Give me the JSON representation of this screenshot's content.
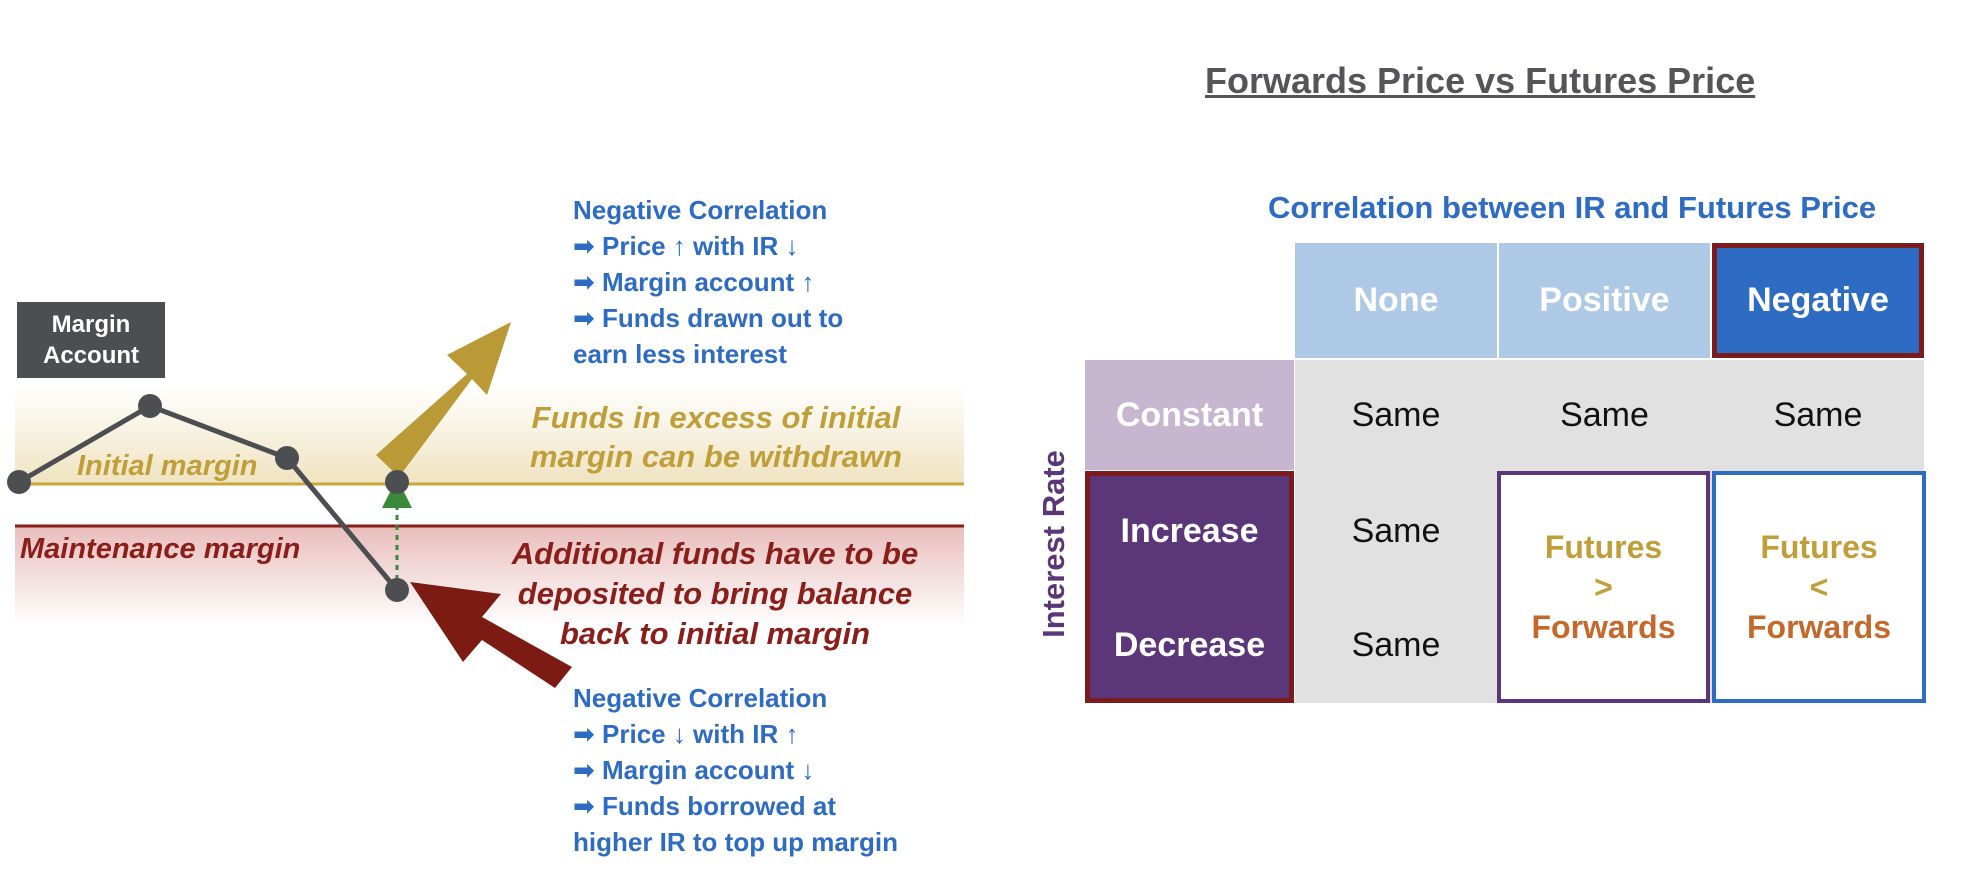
{
  "colors": {
    "initial_band": "#f0e5c6",
    "initial_line": "#c9a73e",
    "maintenance_band": "#ecc6c4",
    "maintenance_line": "#8a1e1a",
    "path": "#4d4e52",
    "gold_arrow": "#b99a37",
    "red_arrow": "#7b1b13",
    "dotted_arrow": "#3a8a3a",
    "blue_text": "#2e6bc2",
    "purple": "#5b3779",
    "light_purple": "#c7b6cf",
    "light_blue": "#aec9e6",
    "dark_blue": "#2e6bc2",
    "cell_grey": "#e1e1e2"
  },
  "left": {
    "margin_account_label": "Margin\nAccount",
    "initial_margin_label": "Initial margin",
    "maintenance_margin_label": "Maintenance margin",
    "excess_text": "Funds in excess of initial\nmargin can be withdrawn",
    "deposit_text": "Additional funds have to be\ndeposited to bring balance\nback to initial margin",
    "note_top": [
      "Negative Correlation",
      "➡ Price ↑ with IR ↓",
      "➡ Margin account ↑",
      "➡ Funds drawn out to",
      "earn less interest"
    ],
    "note_bottom": [
      "Negative Correlation",
      "➡ Price ↓ with IR ↑",
      "➡ Margin account ↓",
      "➡ Funds borrowed at",
      "higher IR to top up margin"
    ]
  },
  "right": {
    "title": "Forwards Price vs Futures Price",
    "column_group_title": "Correlation between IR and Futures Price",
    "row_group_title": "Interest Rate",
    "columns": [
      "None",
      "Positive",
      "Negative"
    ],
    "rows": [
      "Constant",
      "Increase",
      "Decrease"
    ],
    "cells": {
      "constant": [
        "Same",
        "Same",
        "Same"
      ],
      "increase_none": "Same",
      "decrease_none": "Same"
    },
    "positive_box": {
      "top": "Futures",
      "op": ">",
      "bottom": "Forwards"
    },
    "negative_box": {
      "top": "Futures",
      "op": "<",
      "bottom": "Forwards"
    }
  }
}
